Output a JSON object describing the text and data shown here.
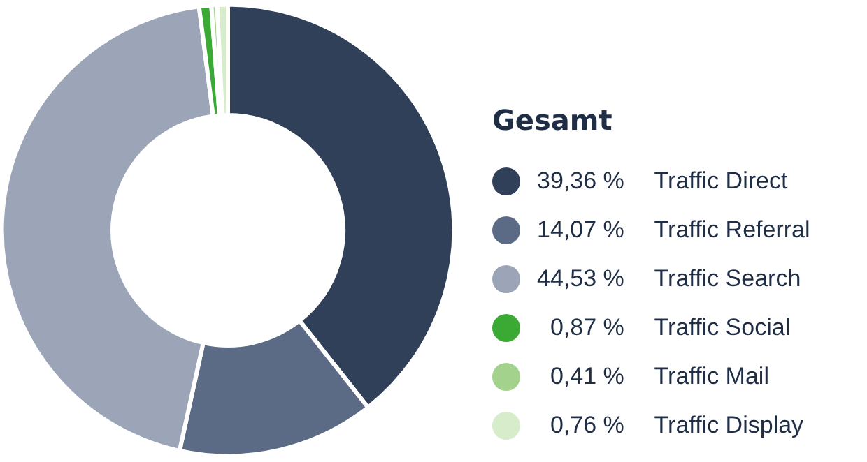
{
  "chart_data": {
    "type": "donut",
    "legend_title": "Gesamt",
    "legend": "right",
    "categories": [
      "Traffic Direct",
      "Traffic Referral",
      "Traffic Search",
      "Traffic Social",
      "Traffic Mail",
      "Traffic Display"
    ],
    "values": [
      39.36,
      14.07,
      44.53,
      0.87,
      0.41,
      0.76
    ],
    "value_labels": [
      "39,36 %",
      "14,07 %",
      "44,53 %",
      "0,87 %",
      "0,41 %",
      "0,76 %"
    ],
    "colors": [
      "#2f4058",
      "#5c6b85",
      "#9ba5b7",
      "#3aaa35",
      "#a2d28c",
      "#d6ecca"
    ]
  }
}
